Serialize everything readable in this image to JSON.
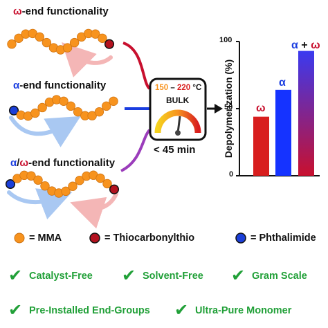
{
  "sections": {
    "omega": {
      "greek": "ω",
      "suffix": "-end functionality"
    },
    "alpha": {
      "greek": "α",
      "suffix": "-end functionality"
    },
    "alphaomega": {
      "greek_a": "α",
      "slash": "/",
      "greek_w": "ω",
      "suffix": "-end functionality"
    }
  },
  "reactor": {
    "temp_low": "150",
    "temp_dash": " – ",
    "temp_high": "220",
    "temp_unit": " °C",
    "mode": "BULK",
    "time": "< 45 min"
  },
  "chart_data": {
    "type": "bar",
    "ylabel": "Depolymerization (%)",
    "yticks": [
      "0",
      "50",
      "100"
    ],
    "ylim": [
      0,
      100
    ],
    "bars": [
      {
        "label": "ω",
        "value": 44,
        "color": "#d81e1e"
      },
      {
        "label": "α",
        "value": 64,
        "color": "#1533ff"
      },
      {
        "label_a": "α",
        "label_plus": " + ",
        "label_w": "ω",
        "value": 93,
        "gradient": [
          "#3a3af0",
          "#c8102e"
        ]
      }
    ]
  },
  "legend": {
    "mma": "= MMA",
    "thio": "= Thiocarbonylthio",
    "phth": "= Phthalimide"
  },
  "features": {
    "catalyst": "Catalyst-Free",
    "solvent": "Solvent-Free",
    "gram": "Gram Scale",
    "preinstalled": "Pre-Installed End-Groups",
    "ultrapure": "Ultra-Pure Monomer"
  },
  "colors": {
    "mma": "#f7931e",
    "thio": "#b3121f",
    "phth": "#1b3fd8",
    "check": "#21a038",
    "red_arrow": "#f4b6b6",
    "blue_arrow": "#a9c8f2"
  }
}
